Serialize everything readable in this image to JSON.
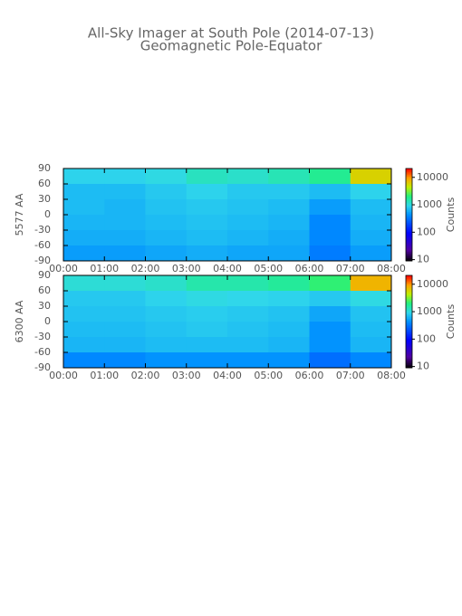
{
  "title": "All-Sky Imager at South Pole (2014-07-13)",
  "subtitle": "Geomagnetic Pole-Equator",
  "chart_data": [
    {
      "type": "heatmap",
      "ylabel": "5577 AA",
      "x": [
        0.5,
        1.5,
        2.5,
        3.5,
        4.5,
        5.5,
        6.5,
        7.5
      ],
      "y": [
        75,
        45,
        15,
        -15,
        -45,
        -75
      ],
      "values": [
        [
          900,
          900,
          1000,
          1300,
          1200,
          1400,
          1800,
          6000
        ],
        [
          700,
          700,
          800,
          900,
          800,
          800,
          700,
          900
        ],
        [
          700,
          650,
          750,
          800,
          750,
          700,
          500,
          700
        ],
        [
          650,
          650,
          700,
          750,
          700,
          650,
          400,
          650
        ],
        [
          600,
          600,
          650,
          700,
          650,
          600,
          400,
          600
        ],
        [
          500,
          500,
          550,
          600,
          550,
          550,
          350,
          500
        ]
      ],
      "xlim": [
        0,
        8
      ],
      "xticks": [
        {
          "value": 0,
          "label": "00:00"
        },
        {
          "value": 1,
          "label": "01:00"
        },
        {
          "value": 2,
          "label": "02:00"
        },
        {
          "value": 3,
          "label": "03:00"
        },
        {
          "value": 4,
          "label": "04:00"
        },
        {
          "value": 5,
          "label": "05:00"
        },
        {
          "value": 6,
          "label": "06:00"
        },
        {
          "value": 7,
          "label": "07:00"
        },
        {
          "value": 8,
          "label": "08:00"
        }
      ],
      "ylim": [
        -90,
        90
      ],
      "yticks": [
        90,
        60,
        30,
        0,
        -30,
        -60,
        -90
      ],
      "colormap": "rainbow",
      "colorbar": {
        "label": "Counts",
        "log": true,
        "lim": [
          9,
          21000
        ],
        "ticks": [
          10,
          100,
          1000,
          10000
        ]
      }
    },
    {
      "type": "heatmap",
      "ylabel": "6300 AA",
      "x": [
        0.5,
        1.5,
        2.5,
        3.5,
        4.5,
        5.5,
        6.5,
        7.5
      ],
      "y": [
        75,
        45,
        15,
        -15,
        -45,
        -75
      ],
      "values": [
        [
          1100,
          1100,
          1200,
          1500,
          1500,
          1700,
          2200,
          8000
        ],
        [
          800,
          800,
          900,
          1000,
          950,
          900,
          800,
          1000
        ],
        [
          750,
          750,
          800,
          850,
          800,
          750,
          550,
          750
        ],
        [
          700,
          700,
          750,
          800,
          750,
          700,
          450,
          700
        ],
        [
          650,
          650,
          700,
          700,
          700,
          650,
          450,
          650
        ],
        [
          400,
          400,
          450,
          450,
          450,
          450,
          300,
          400
        ]
      ],
      "xlim": [
        0,
        8
      ],
      "xticks": [
        {
          "value": 0,
          "label": "00:00"
        },
        {
          "value": 1,
          "label": "01:00"
        },
        {
          "value": 2,
          "label": "02:00"
        },
        {
          "value": 3,
          "label": "03:00"
        },
        {
          "value": 4,
          "label": "04:00"
        },
        {
          "value": 5,
          "label": "05:00"
        },
        {
          "value": 6,
          "label": "06:00"
        },
        {
          "value": 7,
          "label": "07:00"
        },
        {
          "value": 8,
          "label": "08:00"
        }
      ],
      "ylim": [
        -90,
        90
      ],
      "yticks": [
        90,
        60,
        30,
        0,
        -30,
        -60,
        -90
      ],
      "colormap": "rainbow",
      "colorbar": {
        "label": "Counts",
        "log": true,
        "lim": [
          9,
          21000
        ],
        "ticks": [
          10,
          100,
          1000,
          10000
        ]
      }
    }
  ]
}
